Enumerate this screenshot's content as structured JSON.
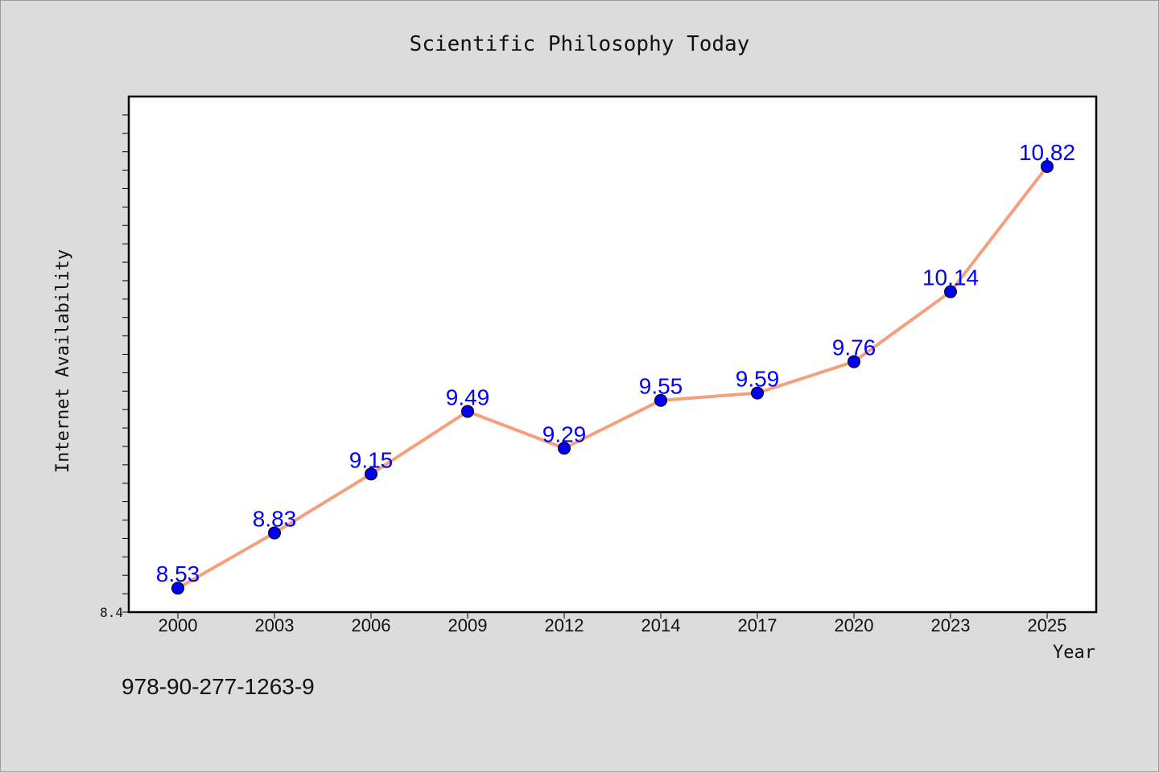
{
  "chart_data": {
    "type": "line",
    "title": "Scientific Philosophy Today",
    "xlabel": "Year",
    "ylabel": "Internet Availability",
    "categories": [
      "2000",
      "2003",
      "2006",
      "2009",
      "2012",
      "2014",
      "2017",
      "2020",
      "2023",
      "2025"
    ],
    "series": [
      {
        "values": [
          8.53,
          8.83,
          9.15,
          9.49,
          9.29,
          9.55,
          9.59,
          9.76,
          10.14,
          10.82
        ]
      }
    ],
    "data_labels": [
      "8.53",
      "8.83",
      "9.15",
      "9.49",
      "9.29",
      "9.55",
      "9.59",
      "9.76",
      "10.14",
      "10.82"
    ],
    "ylim": [
      8.4,
      11.2
    ],
    "ytick_min_label": "8.4",
    "grid": false,
    "legend": "none",
    "colors": {
      "line": "#f4a07c",
      "marker": "#0000ee",
      "label": "#0000ff"
    }
  },
  "footer": {
    "isbn": "978-90-277-1263-9"
  }
}
